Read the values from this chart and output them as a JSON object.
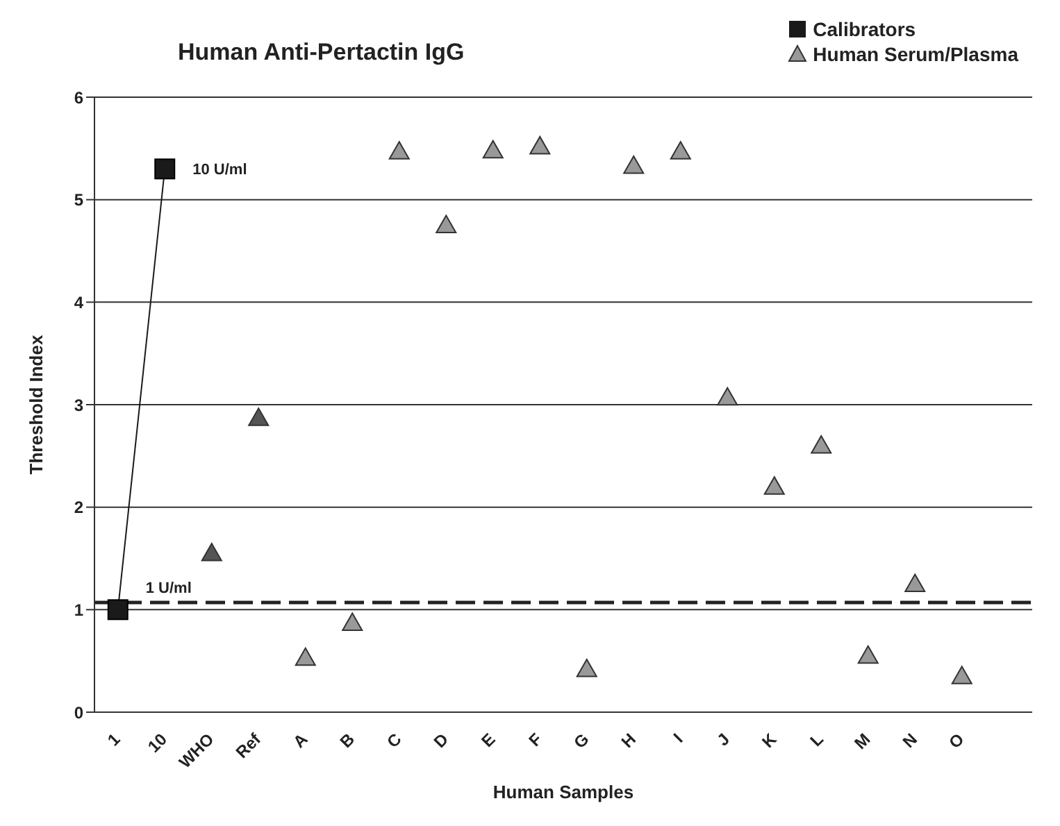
{
  "chart_data": {
    "type": "scatter",
    "title": "Human Anti-Pertactin IgG",
    "xlabel": "Human Samples",
    "ylabel": "Threshold Index",
    "categories": [
      "1",
      "10",
      "WHO",
      "Ref",
      "A",
      "B",
      "C",
      "D",
      "E",
      "F",
      "G",
      "H",
      "I",
      "J",
      "K",
      "L",
      "M",
      "N",
      "O",
      null
    ],
    "series": [
      {
        "name": "Calibrators",
        "type": "line",
        "marker": "square",
        "color": "#1a1a1a",
        "values": [
          1.0,
          5.3,
          null,
          null,
          null,
          null,
          null,
          null,
          null,
          null,
          null,
          null,
          null,
          null,
          null,
          null,
          null,
          null,
          null,
          null
        ]
      },
      {
        "name": "Human Serum/Plasma",
        "marker": "triangle",
        "color": "#999999",
        "colors": [
          "#999999",
          "#999999",
          "#555555",
          "#555555",
          "#999999",
          "#999999",
          "#999999",
          "#999999",
          "#999999",
          "#999999",
          "#999999",
          "#999999",
          "#999999",
          "#999999",
          "#999999",
          "#999999",
          "#999999",
          "#999999",
          "#999999",
          "#999999"
        ],
        "values": [
          null,
          null,
          1.55,
          2.87,
          0.53,
          0.87,
          5.47,
          4.75,
          5.48,
          5.52,
          0.42,
          5.33,
          5.47,
          3.07,
          2.2,
          2.6,
          0.55,
          1.25,
          0.35,
          null
        ]
      }
    ],
    "ylim": [
      0,
      6
    ],
    "yticks": [
      0,
      1,
      2,
      3,
      4,
      5,
      6
    ],
    "grid": "y",
    "legend": "top right",
    "ref_lines": [
      {
        "axis": "y",
        "value": 1.07,
        "color": "#222222",
        "line_style": "dashed"
      }
    ],
    "annotations": [
      {
        "text": "1 U/ml",
        "x": "1",
        "y": 1.0
      },
      {
        "text": "10 U/ml",
        "x": "10",
        "y": 5.3
      }
    ]
  }
}
